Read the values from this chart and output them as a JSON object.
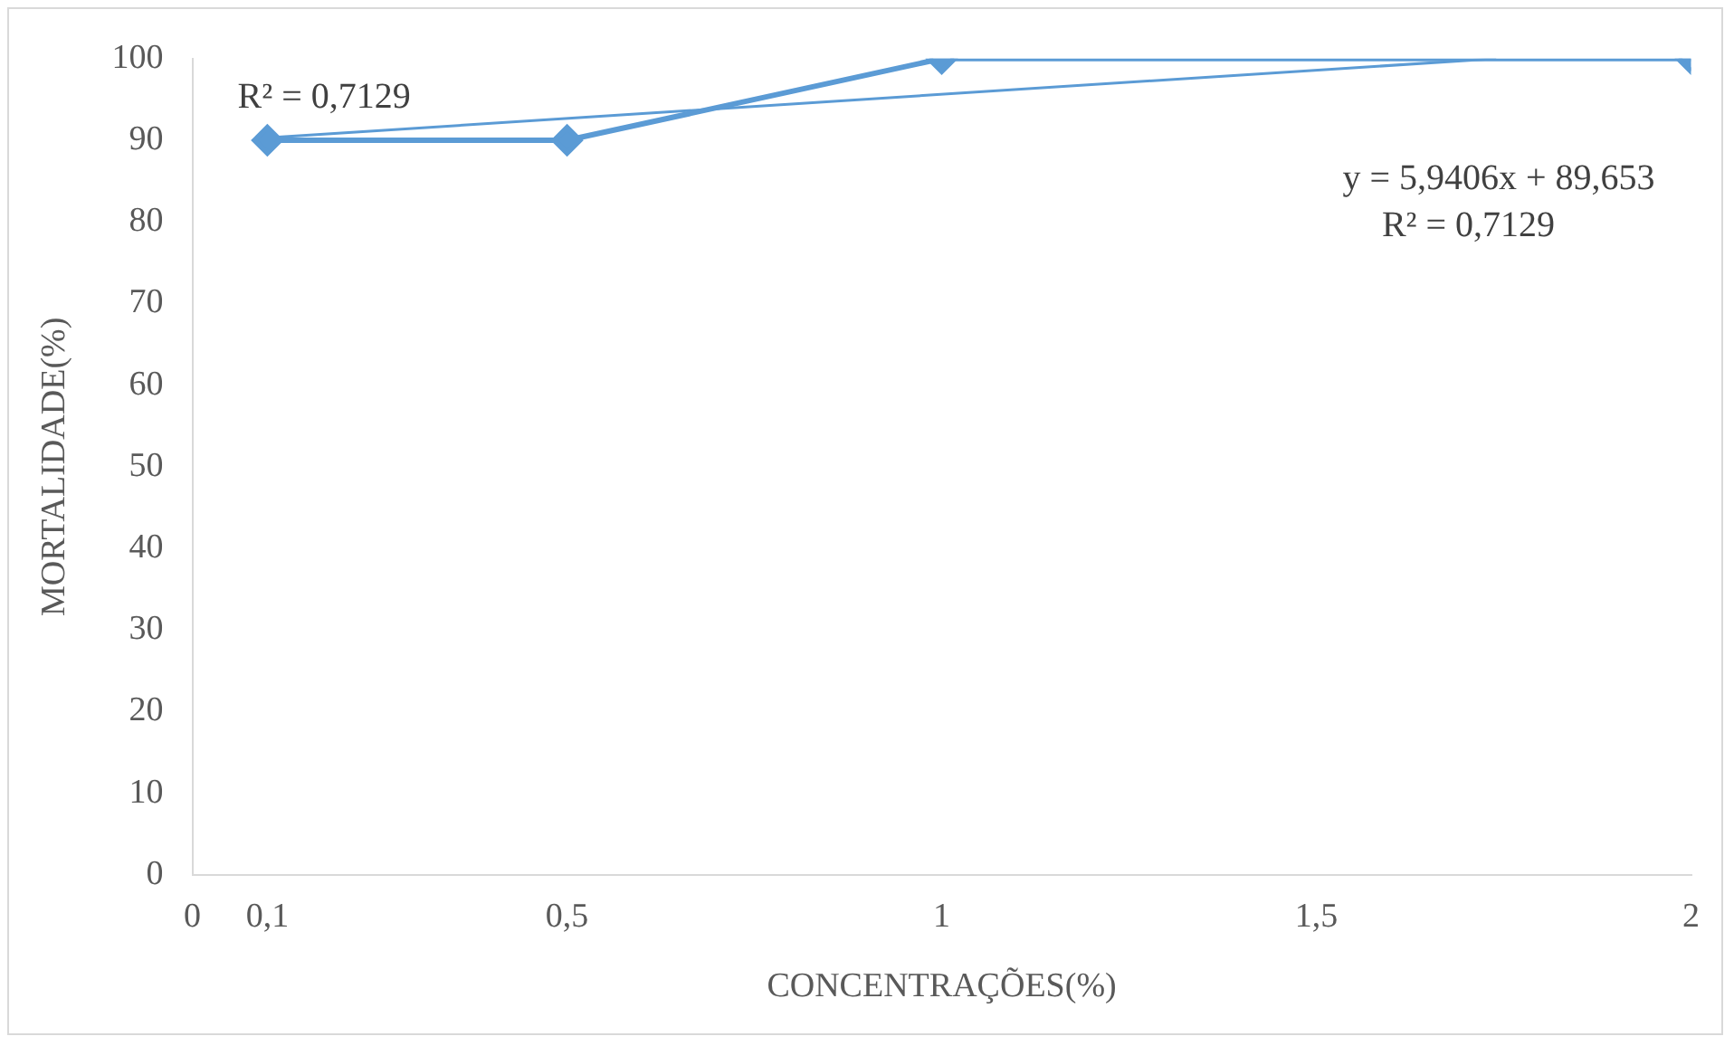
{
  "chart_data": {
    "type": "line",
    "xlabel": "CONCENTRAÇÕES(%)",
    "ylabel": "MORTALIDADE(%)",
    "xlim": [
      0,
      2
    ],
    "xticks": [
      0,
      {
        "value": 0.1,
        "label": "0,1"
      },
      {
        "value": 0.5,
        "label": "0,5"
      },
      1,
      {
        "value": 1.5,
        "label": "1,5"
      },
      2
    ],
    "ylim": [
      0,
      100
    ],
    "yticks": [
      0,
      10,
      20,
      30,
      40,
      50,
      60,
      70,
      80,
      90,
      100
    ],
    "grid": false,
    "legend": false,
    "marker": "diamond",
    "line_style": "solid",
    "series": [
      {
        "color": "#5b9bd5",
        "x": [
          0.1,
          0.5,
          1,
          2
        ],
        "values": [
          90,
          90,
          100,
          100
        ]
      },
      {
        "type": "line",
        "marker": "none",
        "color": "#5b9bd5",
        "x": [
          0.1,
          1.74
        ],
        "values": [
          90.3,
          100
        ]
      }
    ],
    "annotations": [
      "R² = 0,7129",
      "y = 5,9406x + 89,653",
      "R² = 0,7129"
    ]
  }
}
